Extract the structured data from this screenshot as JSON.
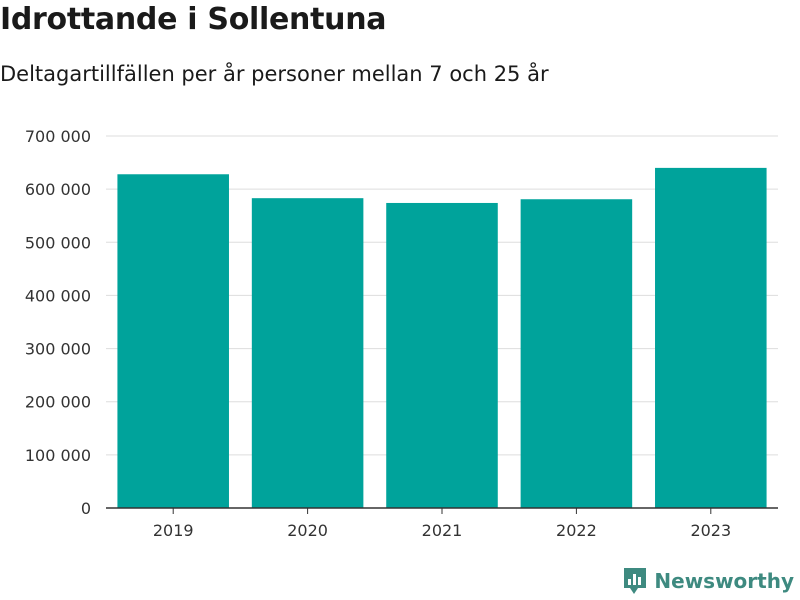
{
  "header": {
    "title": "Idrottande i Sollentuna",
    "subtitle": "Deltagartillfällen per år personer mellan 7 och 25 år"
  },
  "brand": {
    "name": "Newsworthy",
    "icon": "newsworthy-logo-icon",
    "color": "#3e8a80"
  },
  "chart_data": {
    "type": "bar",
    "title": "Idrottande i Sollentuna",
    "subtitle": "Deltagartillfällen per år personer mellan 7 och 25 år",
    "xlabel": "",
    "ylabel": "",
    "categories": [
      "2019",
      "2020",
      "2021",
      "2022",
      "2023"
    ],
    "values": [
      628000,
      583000,
      574000,
      581000,
      640000
    ],
    "ylim": [
      0,
      700000
    ],
    "yticks": [
      0,
      100000,
      200000,
      300000,
      400000,
      500000,
      600000,
      700000
    ],
    "ytick_labels": [
      "0",
      "100 000",
      "200 000",
      "300 000",
      "400 000",
      "500 000",
      "600 000",
      "700 000"
    ],
    "grid": true,
    "bar_color": "#00a39b"
  }
}
